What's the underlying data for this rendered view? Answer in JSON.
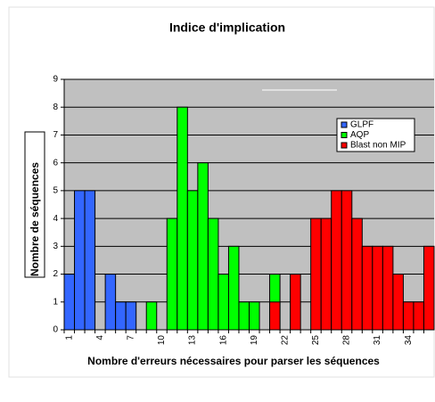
{
  "chart_data": {
    "type": "bar",
    "title": "Indice d'implication",
    "x_label": "Nombre d'erreurs nécessaires pour parser les séquences",
    "y_label": "Nombre de séquences",
    "categories": [
      1,
      null,
      null,
      4,
      null,
      null,
      7,
      null,
      null,
      10,
      null,
      null,
      13,
      null,
      null,
      16,
      null,
      null,
      19,
      null,
      null,
      22,
      null,
      null,
      25,
      null,
      null,
      28,
      null,
      null,
      31,
      null,
      null,
      34,
      null,
      null
    ],
    "series": [
      {
        "name": "GLPF",
        "color": "#3366ff",
        "values": [
          2,
          5,
          5,
          null,
          2,
          1,
          1,
          null,
          null,
          null,
          null,
          null,
          null,
          null,
          null,
          null,
          null,
          null,
          null,
          null,
          null,
          null,
          null,
          null,
          null,
          null,
          null,
          null,
          null,
          null,
          null,
          null,
          null,
          null,
          null,
          null
        ]
      },
      {
        "name": "AQP",
        "color": "#00ff00",
        "values": [
          null,
          null,
          null,
          null,
          null,
          null,
          null,
          null,
          1,
          null,
          4,
          8,
          5,
          6,
          4,
          2,
          3,
          1,
          1,
          null,
          2,
          null,
          null,
          null,
          null,
          null,
          null,
          null,
          null,
          null,
          null,
          null,
          null,
          null,
          null,
          null
        ]
      },
      {
        "name": "Blast non MIP",
        "color": "#ff0000",
        "values": [
          null,
          null,
          null,
          null,
          null,
          null,
          null,
          null,
          null,
          null,
          null,
          null,
          null,
          null,
          null,
          null,
          null,
          null,
          null,
          null,
          1,
          null,
          2,
          null,
          4,
          4,
          5,
          5,
          4,
          3,
          3,
          3,
          2,
          1,
          1,
          3
        ]
      }
    ],
    "ylim": [
      0,
      9
    ],
    "yticks": [
      0,
      1,
      2,
      3,
      4,
      5,
      6,
      7,
      8,
      9
    ],
    "grid": true,
    "legend": "upper right"
  }
}
